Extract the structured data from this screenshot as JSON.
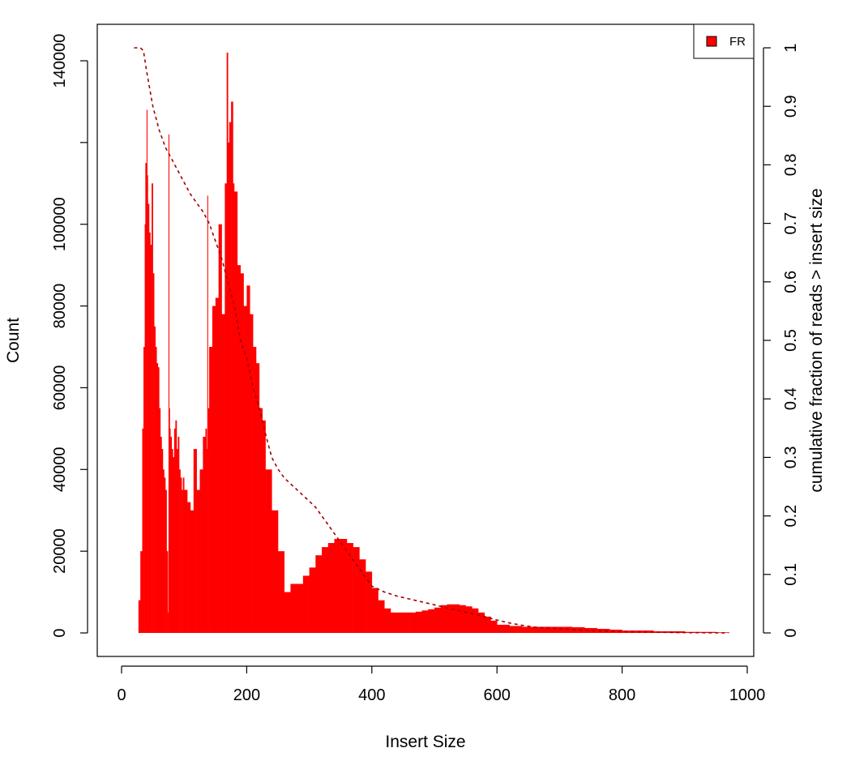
{
  "chart_data": {
    "type": "area",
    "title": "",
    "xlabel": "Insert Size",
    "ylabel": "Count",
    "y2label": "cumulative fraction of reads > insert size",
    "xlim": [
      0,
      1000
    ],
    "ylim": [
      0,
      140000
    ],
    "y2lim": [
      0,
      1
    ],
    "xticks": [
      "0",
      "200",
      "400",
      "600",
      "800",
      "1000"
    ],
    "yticks": [
      "0",
      "20000",
      "40000",
      "60000",
      "80000",
      "100000",
      "140000"
    ],
    "y2ticks": [
      "0",
      "0.1",
      "0.2",
      "0.3",
      "0.4",
      "0.5",
      "0.6",
      "0.7",
      "0.8",
      "0.9",
      "1"
    ],
    "grid": false,
    "legend": {
      "position": "top-right",
      "entries": [
        "FR"
      ]
    },
    "series": [
      {
        "name": "FR",
        "kind": "histogram",
        "color": "#ff0000",
        "x": [
          20,
          24,
          27,
          30,
          33,
          35,
          37,
          38,
          40,
          41,
          42,
          44,
          46,
          48,
          50,
          52,
          54,
          56,
          58,
          60,
          62,
          64,
          66,
          68,
          70,
          72,
          74,
          75,
          76,
          77,
          78,
          80,
          82,
          84,
          86,
          88,
          90,
          92,
          94,
          96,
          98,
          100,
          105,
          110,
          115,
          120,
          125,
          130,
          134,
          136,
          137,
          138,
          140,
          145,
          150,
          155,
          160,
          165,
          168,
          170,
          172,
          175,
          178,
          180,
          185,
          190,
          195,
          200,
          205,
          210,
          215,
          220,
          225,
          230,
          240,
          250,
          260,
          270,
          280,
          290,
          300,
          310,
          320,
          330,
          340,
          350,
          360,
          370,
          380,
          390,
          400,
          410,
          420,
          430,
          440,
          450,
          460,
          470,
          480,
          490,
          500,
          510,
          520,
          530,
          540,
          550,
          560,
          570,
          580,
          590,
          600,
          620,
          640,
          660,
          680,
          700,
          720,
          740,
          760,
          780,
          800,
          850,
          900,
          950,
          970
        ],
        "values": [
          0,
          0,
          8000,
          20000,
          50000,
          70000,
          100000,
          115000,
          128000,
          112000,
          105000,
          98000,
          95000,
          110000,
          88000,
          75000,
          70000,
          66000,
          65000,
          55000,
          48000,
          45000,
          40000,
          38000,
          35000,
          20000,
          5000,
          122000,
          55000,
          50000,
          48000,
          45000,
          43000,
          50000,
          52000,
          45000,
          48000,
          40000,
          38000,
          35000,
          38000,
          35000,
          32000,
          30000,
          45000,
          35000,
          40000,
          48000,
          50000,
          45000,
          107000,
          55000,
          70000,
          80000,
          82000,
          100000,
          78000,
          110000,
          142000,
          120000,
          125000,
          130000,
          110000,
          108000,
          90000,
          88000,
          80000,
          85000,
          78000,
          70000,
          66000,
          55000,
          52000,
          40000,
          30000,
          20000,
          10000,
          12000,
          12000,
          14000,
          16000,
          19000,
          21000,
          22000,
          23000,
          23000,
          22000,
          21000,
          18000,
          15000,
          11000,
          8000,
          6000,
          5000,
          5000,
          5000,
          5000,
          5200,
          5500,
          5800,
          6200,
          6800,
          7000,
          7000,
          6800,
          6500,
          6000,
          5000,
          4000,
          3000,
          2000,
          1700,
          1500,
          1500,
          1500,
          1500,
          1400,
          1200,
          1000,
          800,
          600,
          400,
          250,
          150,
          100
        ]
      },
      {
        "name": "cumulative fraction of reads > insert size",
        "kind": "line",
        "color": "#a00000",
        "axis": "right",
        "x": [
          20,
          30,
          35,
          40,
          50,
          60,
          70,
          80,
          90,
          100,
          110,
          120,
          130,
          140,
          150,
          160,
          170,
          180,
          190,
          200,
          210,
          220,
          230,
          240,
          250,
          260,
          270,
          280,
          290,
          300,
          310,
          320,
          330,
          340,
          350,
          360,
          370,
          380,
          390,
          400,
          420,
          440,
          460,
          480,
          500,
          520,
          540,
          560,
          580,
          600,
          620,
          640,
          660,
          700,
          750,
          800,
          900,
          970
        ],
        "values": [
          1.0,
          1.0,
          0.995,
          0.96,
          0.9,
          0.86,
          0.83,
          0.81,
          0.79,
          0.77,
          0.75,
          0.735,
          0.72,
          0.7,
          0.67,
          0.64,
          0.6,
          0.56,
          0.5,
          0.47,
          0.42,
          0.385,
          0.34,
          0.3,
          0.28,
          0.265,
          0.255,
          0.245,
          0.235,
          0.225,
          0.215,
          0.2,
          0.185,
          0.17,
          0.155,
          0.14,
          0.125,
          0.11,
          0.095,
          0.08,
          0.07,
          0.063,
          0.058,
          0.053,
          0.048,
          0.043,
          0.038,
          0.033,
          0.028,
          0.022,
          0.017,
          0.013,
          0.01,
          0.007,
          0.004,
          0.002,
          0.0005,
          0.0
        ]
      }
    ]
  }
}
